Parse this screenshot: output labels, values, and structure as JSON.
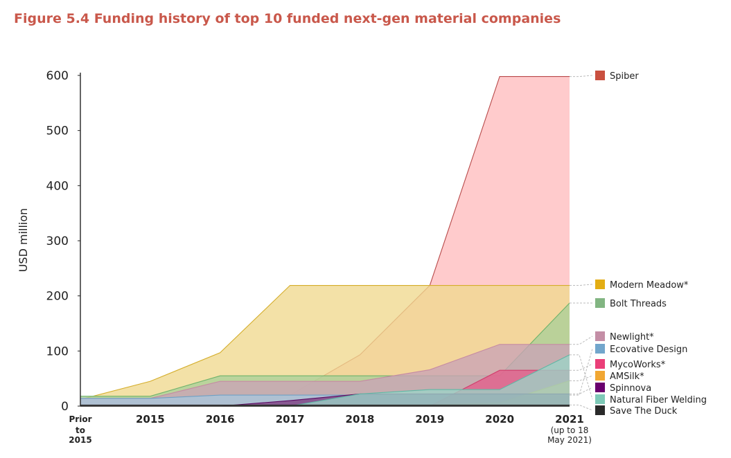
{
  "figure": {
    "title": "Figure 5.4 Funding history of top 10 funded next-gen material companies"
  },
  "colors": {
    "title": "#c9584b",
    "axis": "#222222",
    "leader": "#bbbbbb"
  },
  "chart_data": {
    "type": "area",
    "title": "Figure 5.4 Funding history of top 10 funded next-gen material companies",
    "xlabel": "",
    "ylabel": "USD million",
    "ylim": [
      0,
      600
    ],
    "yticks": [
      0,
      100,
      200,
      300,
      400,
      500,
      600
    ],
    "grid": false,
    "legend_position": "right",
    "categories": [
      {
        "main": "Prior",
        "sub": [
          "to",
          "2015"
        ],
        "note": []
      },
      {
        "main": "2015",
        "sub": [],
        "note": []
      },
      {
        "main": "2016",
        "sub": [],
        "note": []
      },
      {
        "main": "2017",
        "sub": [],
        "note": []
      },
      {
        "main": "2018",
        "sub": [],
        "note": []
      },
      {
        "main": "2019",
        "sub": [],
        "note": []
      },
      {
        "main": "2020",
        "sub": [],
        "note": []
      },
      {
        "main": "2021",
        "sub": [],
        "note": [
          "(up to 18",
          "May 2021)"
        ]
      }
    ],
    "series": [
      {
        "name": "Spiber",
        "fill": "#ffbcbe",
        "stroke": "#b84a4a",
        "swatch": "#c9503f",
        "values": [
          0,
          0,
          0,
          20,
          93,
          219,
          598,
          598
        ]
      },
      {
        "name": "Modern Meadow*",
        "fill": "#f0d98e",
        "stroke": "#d4ad2a",
        "swatch": "#e3ad14",
        "values": [
          12,
          45,
          97,
          219,
          219,
          219,
          219,
          219
        ]
      },
      {
        "name": "Bolt Threads",
        "fill": "#a9cf98",
        "stroke": "#6eb26a",
        "swatch": "#82b582",
        "values": [
          18,
          18,
          55,
          55,
          55,
          55,
          55,
          187
        ]
      },
      {
        "name": "Newlight*",
        "fill": "#c9a3b6",
        "stroke": "#c58aa2",
        "swatch": "#c48ea6",
        "values": [
          14,
          14,
          45,
          45,
          45,
          66,
          112,
          112
        ]
      },
      {
        "name": "Ecovative Design",
        "fill": "#a8c6dc",
        "stroke": "#6fa0c4",
        "swatch": "#72a6cc",
        "values": [
          14,
          14,
          20,
          20,
          20,
          20,
          20,
          20
        ]
      },
      {
        "name": "MycoWorks*",
        "fill": "#e35d8a",
        "stroke": "#d23d6c",
        "swatch": "#ea3f78",
        "values": [
          0,
          0,
          0,
          0,
          0,
          0,
          65,
          65
        ]
      },
      {
        "name": "AMSilk*",
        "fill": "#f4b45c",
        "stroke": "#e9a62c",
        "swatch": "#f1a733",
        "values": [
          0,
          0,
          0,
          0,
          0,
          2,
          6,
          46
        ]
      },
      {
        "name": "Spinnova",
        "fill": "#7e3c80",
        "stroke": "#5a0a62",
        "swatch": "#6a006e",
        "values": [
          0,
          0,
          0,
          10,
          22,
          22,
          22,
          22
        ]
      },
      {
        "name": "Natural Fiber Welding",
        "fill": "#9bd3c6",
        "stroke": "#5fb7a5",
        "swatch": "#7ec9b7",
        "values": [
          0,
          0,
          0,
          0,
          22,
          30,
          30,
          93
        ]
      },
      {
        "name": "Save The Duck",
        "fill": "#555555",
        "stroke": "#333333",
        "swatch": "#2a2a2a",
        "values": [
          2,
          2,
          2,
          2,
          2,
          2,
          2,
          2
        ]
      }
    ]
  }
}
